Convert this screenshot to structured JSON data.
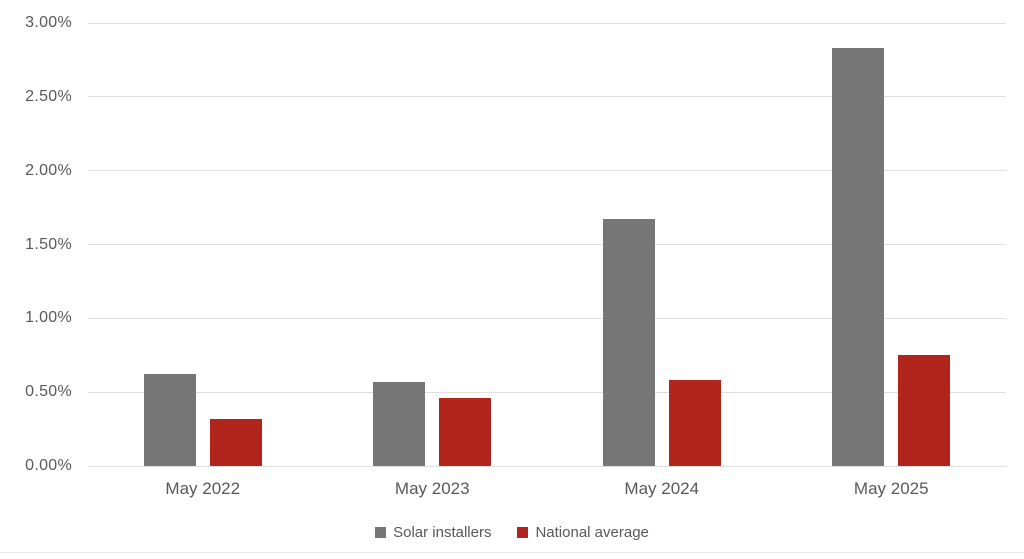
{
  "chart_data": {
    "type": "bar",
    "title": "",
    "xlabel": "",
    "ylabel": "",
    "categories": [
      "May 2022",
      "May 2023",
      "May 2024",
      "May 2025"
    ],
    "series": [
      {
        "name": "Solar installers",
        "color": "#767676",
        "values": [
          0.62,
          0.57,
          1.67,
          2.83
        ]
      },
      {
        "name": "National average",
        "color": "#b2251c",
        "values": [
          0.32,
          0.46,
          0.58,
          0.75
        ]
      }
    ],
    "ylim": [
      0,
      3.0
    ],
    "yticks": [
      {
        "value": 0.0,
        "label": "0.00%"
      },
      {
        "value": 0.5,
        "label": "0.50%"
      },
      {
        "value": 1.0,
        "label": "1.00%"
      },
      {
        "value": 1.5,
        "label": "1.50%"
      },
      {
        "value": 2.0,
        "label": "2.00%"
      },
      {
        "value": 2.5,
        "label": "2.50%"
      },
      {
        "value": 3.0,
        "label": "3.00%"
      }
    ],
    "grid": true,
    "legend_position": "bottom",
    "value_format": "percent"
  },
  "style": {
    "background": "#ffffff",
    "grid_color": "#e0dede",
    "axis_label_color": "#595959",
    "divider_color": "#e9e9e9"
  }
}
